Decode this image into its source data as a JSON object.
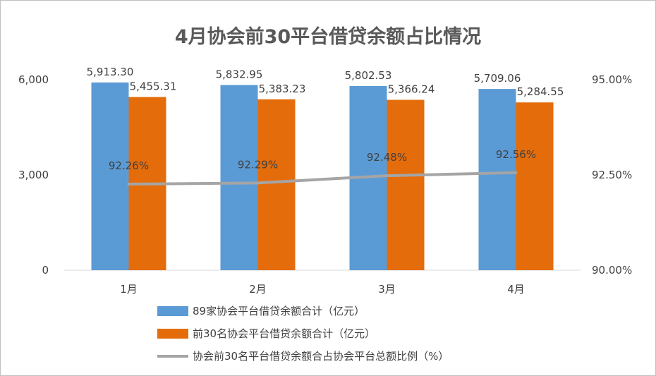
{
  "chart_data": {
    "type": "bar+line",
    "title": "4月协会前30平台借贷余额占比情况",
    "categories": [
      "1月",
      "2月",
      "3月",
      "4月"
    ],
    "series": [
      {
        "name": "89家协会平台借贷余额合计（亿元）",
        "type": "bar",
        "axis": "left",
        "color": "#5b9bd5",
        "values": [
          5913.3,
          5832.95,
          5802.53,
          5709.06
        ],
        "labels": [
          "5,913.30",
          "5,832.95",
          "5,802.53",
          "5,709.06"
        ]
      },
      {
        "name": "前30名协会平台借贷余额合计（亿元）",
        "type": "bar",
        "axis": "right-none",
        "color": "#e46c0a",
        "values": [
          5455.31,
          5383.23,
          5366.24,
          5284.55
        ],
        "labels": [
          "5,455.31",
          "5,383.23",
          "5,366.24",
          "5,284.55"
        ]
      },
      {
        "name": "协会前30名平台借贷余额合占协会平台总额比例（%）",
        "type": "line",
        "axis": "right",
        "color": "#a5a5a5",
        "values": [
          92.26,
          92.29,
          92.48,
          92.56
        ],
        "labels": [
          "92.26%",
          "92.29%",
          "92.48%",
          "92.56%"
        ]
      }
    ],
    "y_left": {
      "min": 0,
      "max": 6000,
      "ticks": [
        0,
        3000,
        6000
      ],
      "tick_labels": [
        "0",
        "3,000",
        "6,000"
      ]
    },
    "y_right": {
      "min": 90,
      "max": 95,
      "ticks": [
        90,
        92.5,
        95
      ],
      "tick_labels": [
        "90.00%",
        "92.50%",
        "95.00%"
      ]
    },
    "grid": false,
    "legend_position": "bottom"
  }
}
